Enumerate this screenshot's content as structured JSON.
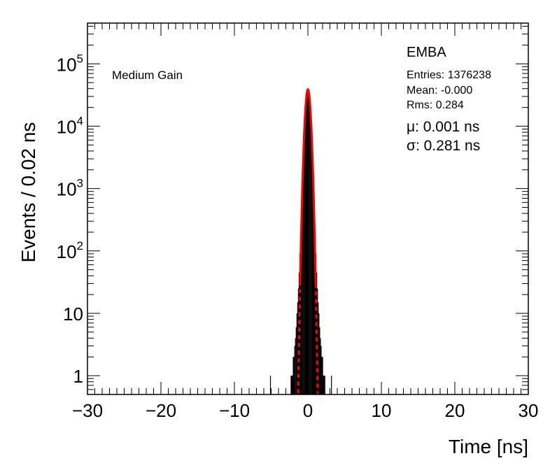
{
  "chart_data": {
    "type": "histogram",
    "title": "EMBA",
    "subtitle": "Medium Gain",
    "xlabel": "Time [ns]",
    "ylabel": "Events / 0.02 ns",
    "xlim": [
      -30,
      30
    ],
    "ylim": [
      0.5,
      450000
    ],
    "yscale": "log",
    "grid": false,
    "x_ticks": [
      -30,
      -20,
      -10,
      0,
      10,
      20,
      30
    ],
    "x_tick_labels": [
      "−30",
      "−20",
      "−10",
      "0",
      "10",
      "20",
      "30"
    ],
    "y_ticks": [
      {
        "value": 1,
        "base": "1",
        "exp": ""
      },
      {
        "value": 10,
        "base": "10",
        "exp": ""
      },
      {
        "value": 100,
        "base": "10",
        "exp": "2"
      },
      {
        "value": 1000,
        "base": "10",
        "exp": "3"
      },
      {
        "value": 10000,
        "base": "10",
        "exp": "4"
      },
      {
        "value": 100000,
        "base": "10",
        "exp": "5"
      }
    ],
    "stats": {
      "entries": "Entries: 1376238",
      "mean": "Mean: -0.000",
      "rms": "Rms: 0.284"
    },
    "fit": {
      "mu_label": "μ: 0.001 ns",
      "sigma_label": "σ: 0.281 ns",
      "mu": 0.001,
      "sigma": 0.281,
      "peak": 39000,
      "color": "#ff0000"
    },
    "series": [
      {
        "x": [
          -5.1,
          -2.3,
          -2.2,
          -2.1,
          -2.0,
          -1.9,
          -1.8,
          -1.7,
          -1.6,
          -1.5,
          -1.4,
          -1.3,
          -1.2,
          -1.1,
          -1.0,
          -0.9,
          -0.8,
          -0.7,
          -0.6,
          -0.5,
          -0.4,
          -0.3,
          -0.2,
          -0.1,
          0.0,
          0.1,
          0.2,
          0.3,
          0.4,
          0.5,
          0.6,
          0.7,
          0.8,
          0.9,
          1.0,
          1.1,
          1.2,
          1.3,
          1.4,
          1.5,
          1.6,
          1.7,
          1.8,
          1.9,
          2.0,
          2.1,
          2.2,
          2.3,
          3.2
        ],
        "y": [
          1,
          1,
          1,
          1,
          2,
          2,
          3,
          4,
          6,
          10,
          15,
          25,
          45,
          90,
          200,
          450,
          1000,
          2500,
          5500,
          10500,
          17500,
          26000,
          33500,
          38000,
          39000,
          38000,
          33500,
          26000,
          17500,
          10500,
          5500,
          2500,
          1000,
          450,
          200,
          90,
          45,
          25,
          15,
          10,
          6,
          4,
          3,
          2,
          2,
          1,
          1,
          1,
          1
        ],
        "color": "#000000"
      }
    ]
  }
}
